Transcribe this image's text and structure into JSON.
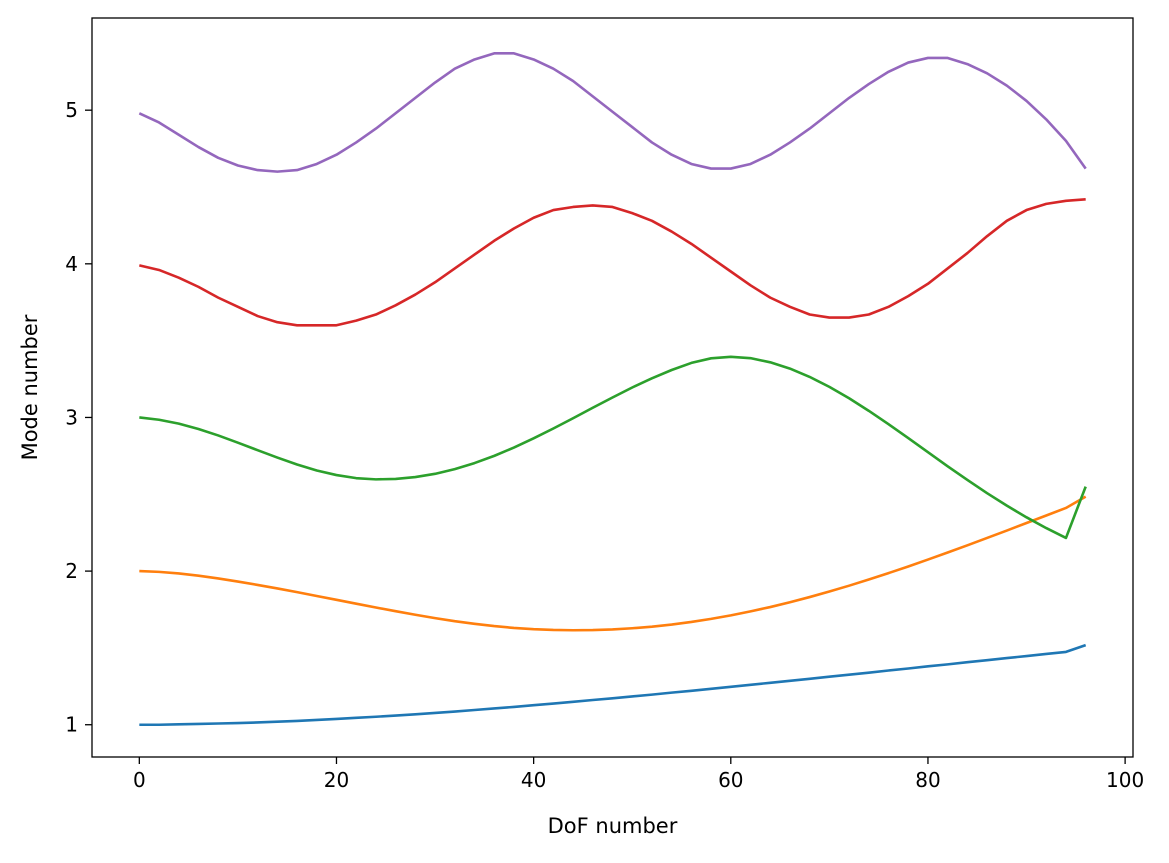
{
  "chart_data": {
    "type": "line",
    "title": "",
    "xlabel": "DoF number",
    "ylabel": "Mode number",
    "xlim": [
      -4.8,
      100.8
    ],
    "ylim": [
      0.79,
      5.6
    ],
    "xticks": [
      0,
      20,
      40,
      60,
      80,
      100
    ],
    "yticks": [
      1,
      2,
      3,
      4,
      5
    ],
    "xtick_labels": [
      "0",
      "20",
      "40",
      "60",
      "80",
      "100"
    ],
    "ytick_labels": [
      "1",
      "2",
      "3",
      "4",
      "5"
    ],
    "grid": false,
    "legend": "none",
    "x": [
      0,
      2,
      4,
      6,
      8,
      10,
      12,
      14,
      16,
      18,
      20,
      22,
      24,
      26,
      28,
      30,
      32,
      34,
      36,
      38,
      40,
      42,
      44,
      46,
      48,
      50,
      52,
      54,
      56,
      58,
      60,
      62,
      64,
      66,
      68,
      70,
      72,
      74,
      76,
      78,
      80,
      82,
      84,
      86,
      88,
      90,
      92,
      94,
      96
    ],
    "series": [
      {
        "color": "#1f77b4",
        "values": [
          1.0,
          1.0,
          1.003,
          1.005,
          1.008,
          1.011,
          1.015,
          1.02,
          1.025,
          1.031,
          1.038,
          1.045,
          1.052,
          1.06,
          1.068,
          1.077,
          1.086,
          1.096,
          1.106,
          1.116,
          1.127,
          1.138,
          1.149,
          1.161,
          1.172,
          1.184,
          1.196,
          1.209,
          1.221,
          1.234,
          1.247,
          1.26,
          1.273,
          1.286,
          1.299,
          1.313,
          1.326,
          1.339,
          1.353,
          1.366,
          1.38,
          1.393,
          1.407,
          1.42,
          1.434,
          1.447,
          1.461,
          1.474,
          1.518
        ]
      },
      {
        "color": "#ff7f0e",
        "values": [
          2.0,
          1.995,
          1.985,
          1.97,
          1.952,
          1.932,
          1.91,
          1.887,
          1.863,
          1.838,
          1.813,
          1.788,
          1.763,
          1.739,
          1.716,
          1.694,
          1.674,
          1.657,
          1.642,
          1.63,
          1.622,
          1.617,
          1.615,
          1.616,
          1.62,
          1.628,
          1.638,
          1.652,
          1.669,
          1.689,
          1.712,
          1.738,
          1.766,
          1.797,
          1.831,
          1.867,
          1.905,
          1.945,
          1.987,
          2.03,
          2.075,
          2.121,
          2.168,
          2.216,
          2.264,
          2.313,
          2.362,
          2.411,
          2.485
        ]
      },
      {
        "color": "#2ca02c",
        "values": [
          3.0,
          2.985,
          2.96,
          2.925,
          2.883,
          2.836,
          2.787,
          2.739,
          2.694,
          2.655,
          2.625,
          2.605,
          2.597,
          2.6,
          2.612,
          2.633,
          2.664,
          2.703,
          2.75,
          2.804,
          2.864,
          2.928,
          2.995,
          3.063,
          3.13,
          3.195,
          3.255,
          3.309,
          3.355,
          3.385,
          3.395,
          3.386,
          3.359,
          3.318,
          3.264,
          3.199,
          3.125,
          3.043,
          2.956,
          2.866,
          2.774,
          2.682,
          2.593,
          2.507,
          2.426,
          2.35,
          2.28,
          2.216,
          2.55
        ]
      },
      {
        "color": "#d62728",
        "values": [
          3.99,
          3.96,
          3.91,
          3.85,
          3.78,
          3.72,
          3.66,
          3.62,
          3.6,
          3.6,
          3.6,
          3.63,
          3.67,
          3.73,
          3.8,
          3.88,
          3.97,
          4.06,
          4.15,
          4.23,
          4.3,
          4.35,
          4.37,
          4.38,
          4.37,
          4.33,
          4.28,
          4.21,
          4.13,
          4.04,
          3.95,
          3.86,
          3.78,
          3.72,
          3.67,
          3.65,
          3.65,
          3.67,
          3.72,
          3.79,
          3.87,
          3.97,
          4.07,
          4.18,
          4.28,
          4.35,
          4.39,
          4.41,
          4.42
        ]
      },
      {
        "color": "#9467bd",
        "values": [
          4.98,
          4.92,
          4.84,
          4.76,
          4.69,
          4.64,
          4.61,
          4.6,
          4.61,
          4.65,
          4.71,
          4.79,
          4.88,
          4.98,
          5.08,
          5.18,
          5.27,
          5.33,
          5.37,
          5.37,
          5.33,
          5.27,
          5.19,
          5.09,
          4.99,
          4.89,
          4.79,
          4.71,
          4.65,
          4.62,
          4.62,
          4.65,
          4.71,
          4.79,
          4.88,
          4.98,
          5.08,
          5.17,
          5.25,
          5.31,
          5.34,
          5.34,
          5.3,
          5.24,
          5.16,
          5.06,
          4.94,
          4.8,
          4.62
        ]
      }
    ]
  }
}
